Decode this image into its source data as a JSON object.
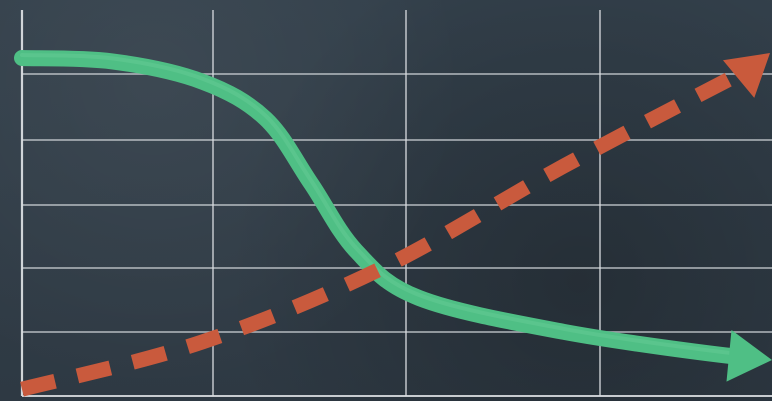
{
  "chart_data": {
    "type": "line",
    "title": "",
    "xlabel": "",
    "ylabel": "",
    "grid": true,
    "legend": "none",
    "xlim": [
      0,
      4
    ],
    "ylim": [
      0,
      5
    ],
    "series": [
      {
        "style": "solid-arrow",
        "color": "#4fbf85",
        "points": [
          [
            0,
            5
          ],
          [
            0.5,
            4.95
          ],
          [
            1,
            4.65
          ],
          [
            1.35,
            4.1
          ],
          [
            1.6,
            3.15
          ],
          [
            1.85,
            2.15
          ],
          [
            2.2,
            1.45
          ],
          [
            3,
            0.95
          ],
          [
            4,
            0.55
          ]
        ]
      },
      {
        "style": "dashed-arrow",
        "color": "#c95a3c",
        "points": [
          [
            0,
            0.1
          ],
          [
            1,
            0.8
          ],
          [
            2,
            1.9
          ],
          [
            3,
            3.4
          ],
          [
            4,
            4.8
          ]
        ]
      }
    ]
  },
  "colors": {
    "background": "#303b45",
    "grid": "#d9dde0"
  }
}
